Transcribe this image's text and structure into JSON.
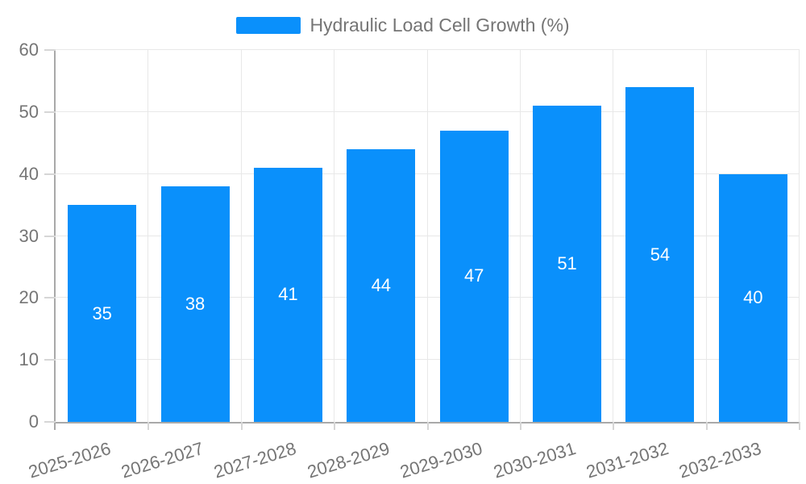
{
  "chart_data": {
    "type": "bar",
    "title": "",
    "legend": {
      "label": "Hydraulic Load Cell Growth (%)",
      "position": "top-center"
    },
    "categories": [
      "2025-2026",
      "2026-2027",
      "2027-2028",
      "2028-2029",
      "2029-2030",
      "2030-2031",
      "2031-2032",
      "2032-2033"
    ],
    "series": [
      {
        "name": "Hydraulic Load Cell Growth (%)",
        "values": [
          35,
          38,
          41,
          44,
          47,
          51,
          54,
          40
        ]
      }
    ],
    "value_labels": {
      "visible": true,
      "position": "center-of-bar",
      "color": "#ffffff"
    },
    "xlabel": "",
    "ylabel": "",
    "ylim": [
      0,
      60
    ],
    "ytick_step": 10,
    "yticks": [
      0,
      10,
      20,
      30,
      40,
      50,
      60
    ],
    "x_label_rotation_deg": -17,
    "grid": true,
    "colors": {
      "bar": "#0a90fb",
      "axis_text": "#757575",
      "legend_text": "#757575",
      "grid_line": "#e8e8e8",
      "axis_line": "#a9a9a9",
      "tick_line": "#d6d6d6",
      "background": "#ffffff"
    }
  }
}
